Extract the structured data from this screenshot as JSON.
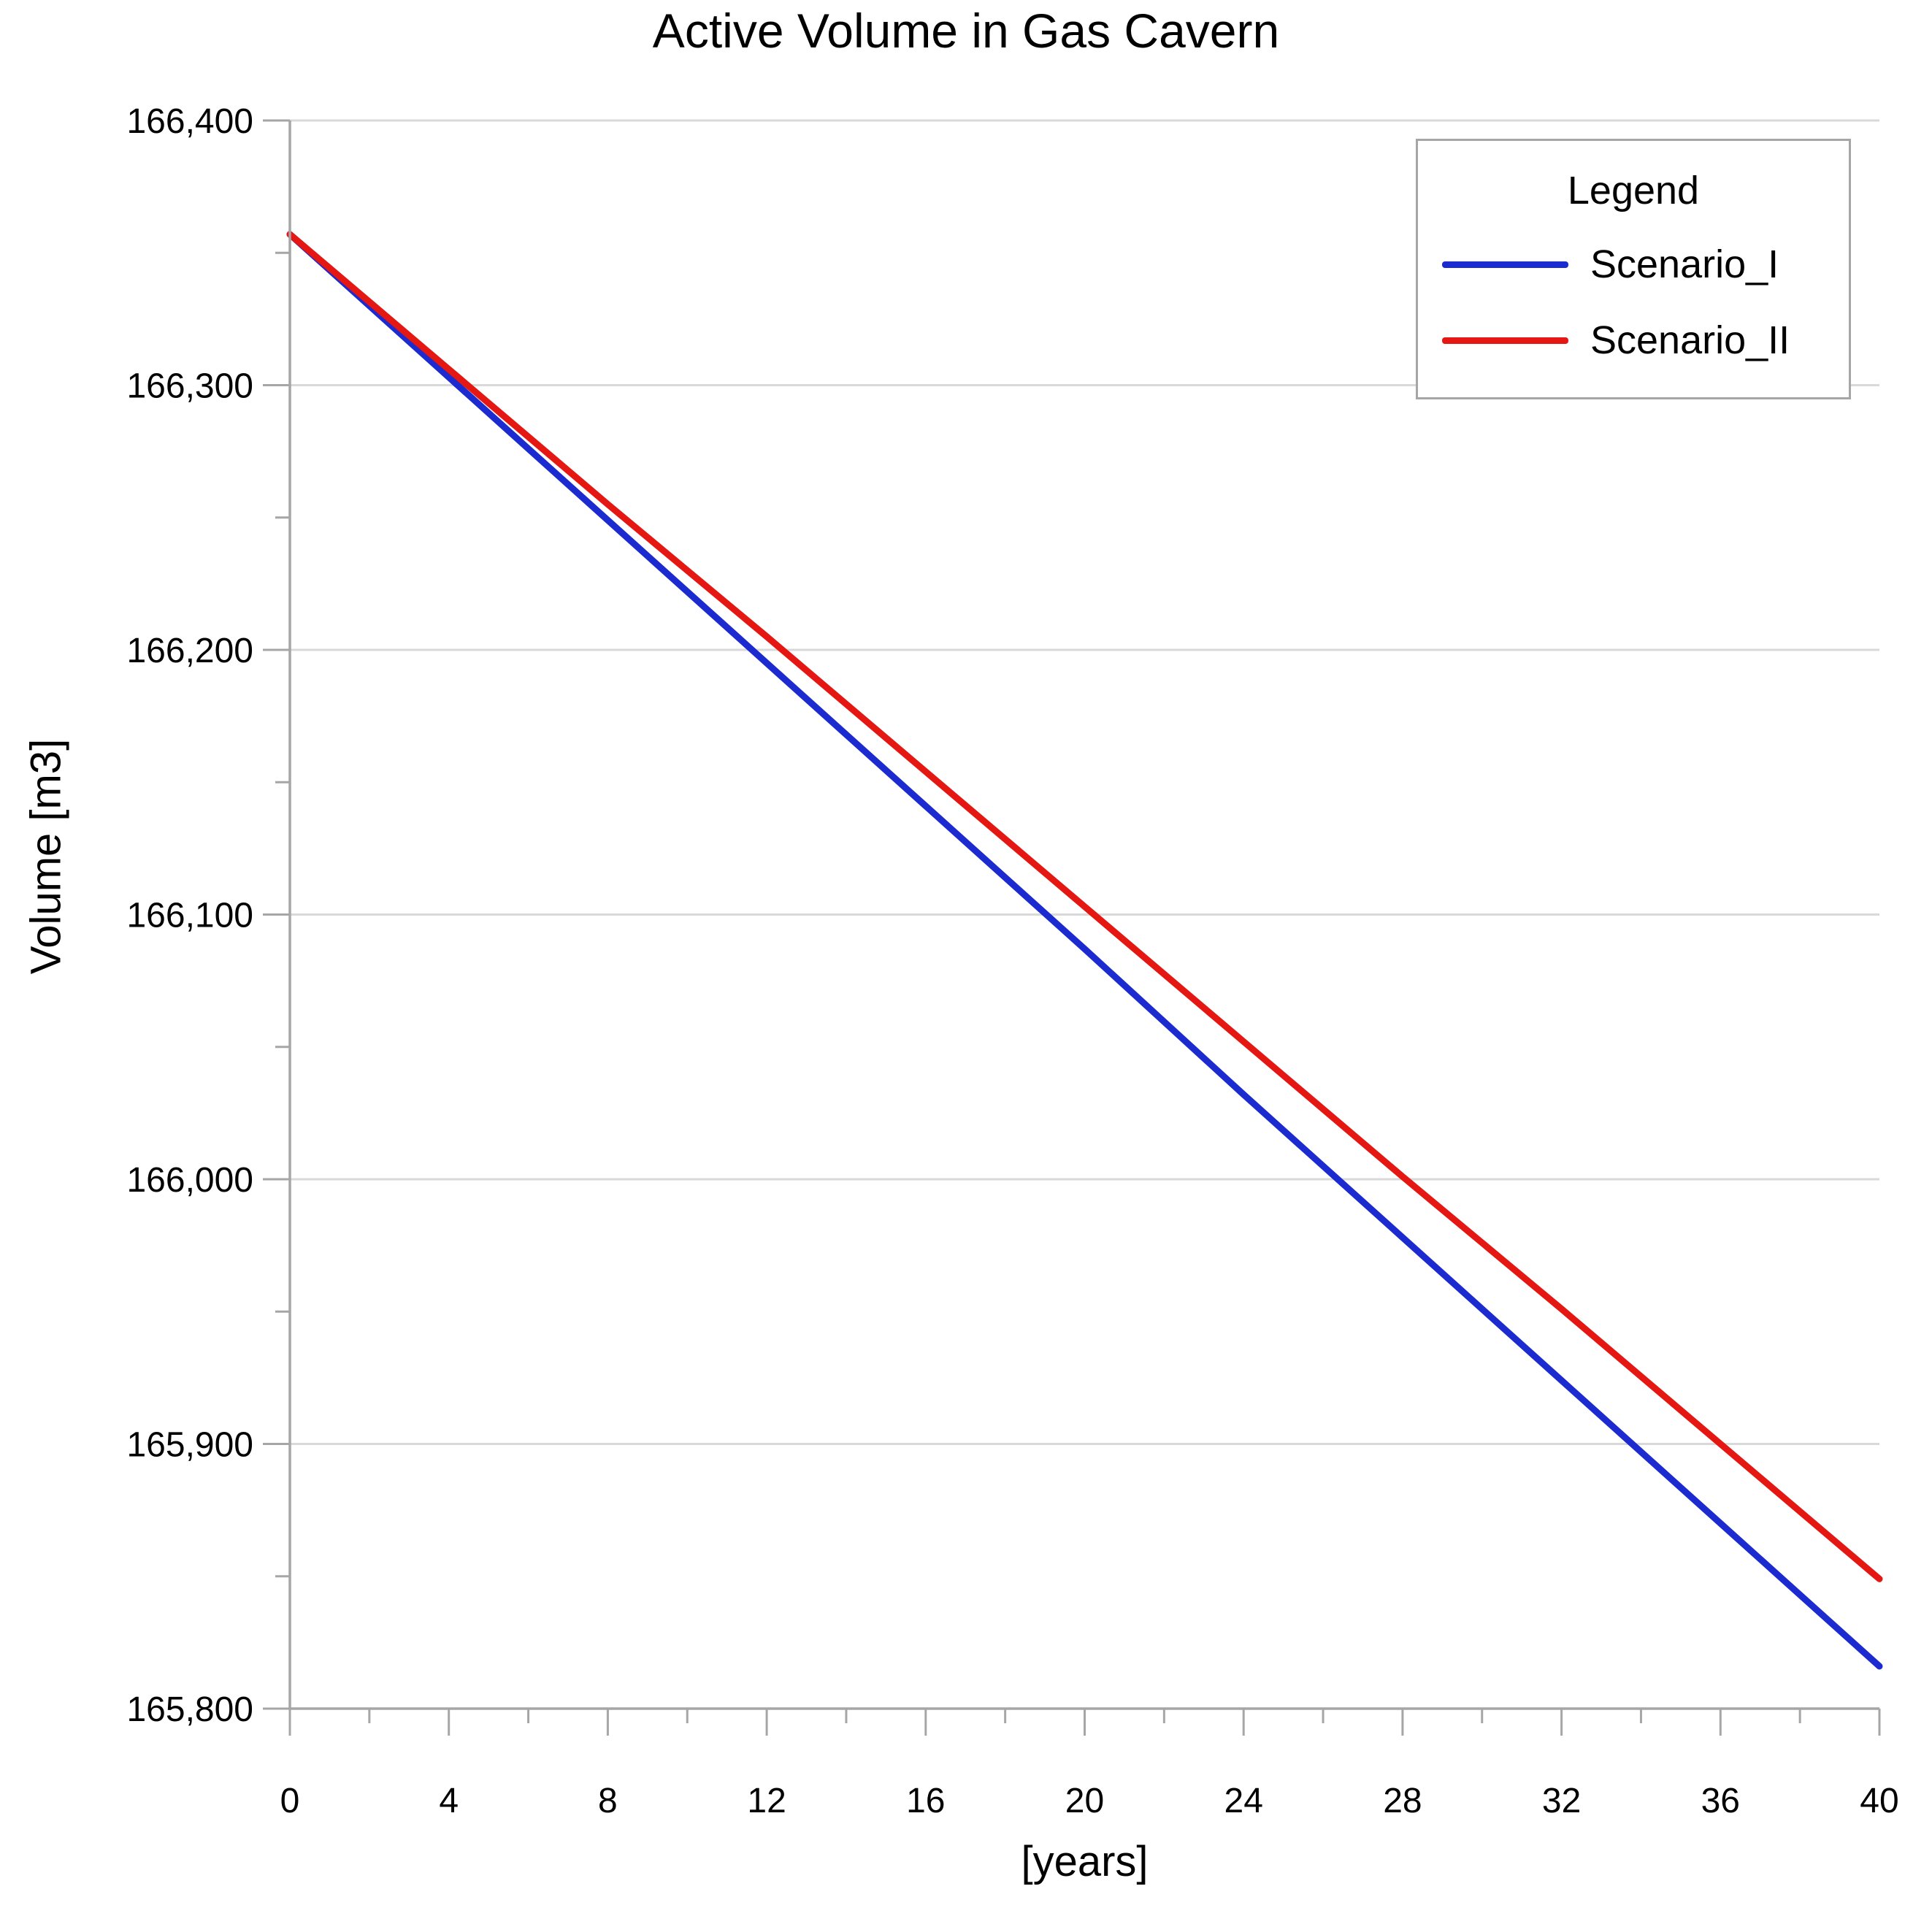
{
  "title": "Active Volume in Gas Cavern",
  "axes": {
    "x": {
      "label": "[years]",
      "min": 0,
      "max": 40,
      "minor_step": 2,
      "ticks": [
        {
          "v": 0,
          "label": "0"
        },
        {
          "v": 4,
          "label": "4"
        },
        {
          "v": 8,
          "label": "8"
        },
        {
          "v": 12,
          "label": "12"
        },
        {
          "v": 16,
          "label": "16"
        },
        {
          "v": 20,
          "label": "20"
        },
        {
          "v": 24,
          "label": "24"
        },
        {
          "v": 28,
          "label": "28"
        },
        {
          "v": 32,
          "label": "32"
        },
        {
          "v": 36,
          "label": "36"
        },
        {
          "v": 40,
          "label": "40"
        }
      ]
    },
    "y": {
      "label": "Volume [m3]",
      "min": 165800,
      "max": 166400,
      "major_step": 100,
      "minor_step": 50,
      "ticks": [
        {
          "v": 165800,
          "label": "165,800"
        },
        {
          "v": 165900,
          "label": "165,900"
        },
        {
          "v": 166000,
          "label": "166,000"
        },
        {
          "v": 166100,
          "label": "166,100"
        },
        {
          "v": 166200,
          "label": "166,200"
        },
        {
          "v": 166300,
          "label": "166,300"
        },
        {
          "v": 166400,
          "label": "166,400"
        }
      ]
    }
  },
  "legend": {
    "title": "Legend",
    "entries": [
      {
        "label": "Scenario_I",
        "color": "#1c2bd0"
      },
      {
        "label": "Scenario_II",
        "color": "#e41712"
      }
    ]
  },
  "colors": {
    "background": "#ffffff",
    "gridline": "#d9d9d9",
    "axis": "#a6a6a6",
    "text": "#000000"
  },
  "chart_data": {
    "type": "line",
    "title": "Active Volume in Gas Cavern",
    "xlabel": "[years]",
    "ylabel": "Volume [m3]",
    "xlim": [
      0,
      40
    ],
    "ylim": [
      165800,
      166400
    ],
    "grid": "horizontal-only",
    "legend_position": "top-right",
    "x": [
      0,
      4,
      8,
      12,
      16,
      20,
      24,
      28,
      32,
      36,
      40
    ],
    "series": [
      {
        "name": "Scenario_I",
        "color": "#1c2bd0",
        "values": [
          166357,
          166303,
          166249,
          166195,
          166141,
          166087,
          166032,
          165978,
          165924,
          165870,
          165816
        ]
      },
      {
        "name": "Scenario_II",
        "color": "#e41712",
        "values": [
          166357,
          166306,
          166255,
          166205,
          166154,
          166103,
          166052,
          166001,
          165951,
          165900,
          165849
        ]
      }
    ]
  }
}
